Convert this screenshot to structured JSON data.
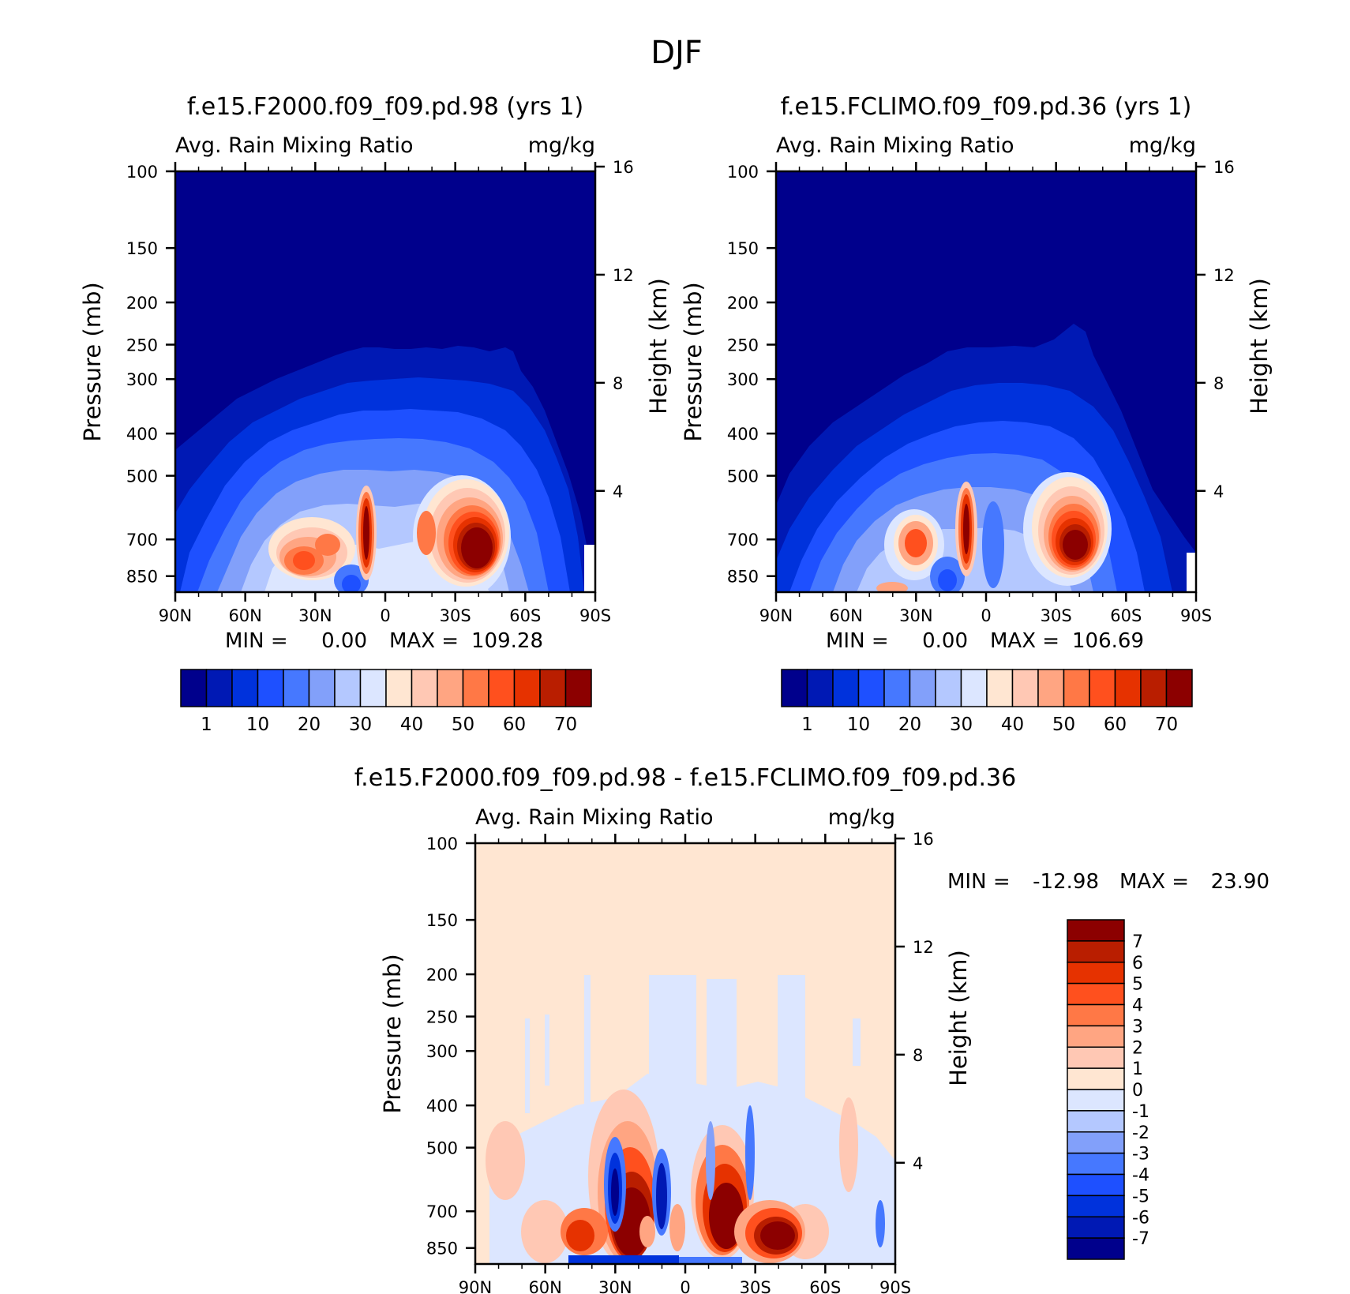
{
  "figure": {
    "title": "DJF"
  },
  "palettes": {
    "abs": [
      "#00008c",
      "#0019b4",
      "#0032dc",
      "#1e50ff",
      "#4678ff",
      "#82a0fa",
      "#b4c8ff",
      "#dce6ff",
      "#ffe6d2",
      "#ffc8b4",
      "#ffa582",
      "#ff7846",
      "#ff501e",
      "#e63200",
      "#b91e00",
      "#8c0000"
    ],
    "diff": [
      "#00008c",
      "#0019b4",
      "#0032dc",
      "#1e50ff",
      "#4678ff",
      "#82a0fa",
      "#b4c8ff",
      "#dce6ff",
      "#ffe6d2",
      "#ffc8b4",
      "#ffa582",
      "#ff7846",
      "#ff501e",
      "#e63200",
      "#b91e00",
      "#8c0000"
    ]
  },
  "chart_data": [
    {
      "type": "heatmap",
      "title": "f.e15.F2000.f09_f09.pd.98 (yrs 1)",
      "subtitle_left": "Avg. Rain Mixing Ratio",
      "subtitle_right": "mg/kg",
      "ylabel": "Pressure (mb)",
      "ylabel_right": "Height (km)",
      "x_ticks": [
        "90N",
        "60N",
        "30N",
        "0",
        "30S",
        "60S",
        "90S"
      ],
      "y_ticks": [
        "100",
        "150",
        "200",
        "250",
        "300",
        "400",
        "500",
        "700",
        "850"
      ],
      "y_values": [
        100,
        150,
        200,
        250,
        300,
        400,
        500,
        700,
        850
      ],
      "ylim": [
        100,
        925
      ],
      "y_right_ticks": [
        "16",
        "12",
        "8",
        "4"
      ],
      "y_right_values": [
        16,
        12,
        8,
        4
      ],
      "min_label": "MIN =",
      "min_value": "0.00",
      "max_label": "MAX =",
      "max_value": "109.28",
      "colorbar_levels": [
        "1",
        "10",
        "20",
        "30",
        "40",
        "50",
        "60",
        "70"
      ],
      "colorbar_thresholds": [
        0,
        1,
        5,
        10,
        15,
        20,
        25,
        30,
        35,
        40,
        45,
        50,
        55,
        60,
        65,
        70
      ],
      "background_level": 0,
      "field": [
        {
          "lat": 30,
          "p": 720,
          "value": 45
        },
        {
          "lat": 10,
          "p": 700,
          "value": 85
        },
        {
          "lat": -38,
          "p": 700,
          "value": 109.28
        },
        {
          "lat": -22,
          "p": 720,
          "value": 40
        }
      ]
    },
    {
      "type": "heatmap",
      "title": "f.e15.FCLIMO.f09_f09.pd.36 (yrs 1)",
      "subtitle_left": "Avg. Rain Mixing Ratio",
      "subtitle_right": "mg/kg",
      "ylabel": "Pressure (mb)",
      "ylabel_right": "Height (km)",
      "x_ticks": [
        "90N",
        "60N",
        "30N",
        "0",
        "30S",
        "60S",
        "90S"
      ],
      "y_ticks": [
        "100",
        "150",
        "200",
        "250",
        "300",
        "400",
        "500",
        "700",
        "850"
      ],
      "y_values": [
        100,
        150,
        200,
        250,
        300,
        400,
        500,
        700,
        850
      ],
      "ylim": [
        100,
        925
      ],
      "y_right_ticks": [
        "16",
        "12",
        "8",
        "4"
      ],
      "y_right_values": [
        16,
        12,
        8,
        4
      ],
      "min_label": "MIN =",
      "min_value": "0.00",
      "max_label": "MAX =",
      "max_value": "106.69",
      "colorbar_levels": [
        "1",
        "10",
        "20",
        "30",
        "40",
        "50",
        "60",
        "70"
      ],
      "colorbar_thresholds": [
        0,
        1,
        5,
        10,
        15,
        20,
        25,
        30,
        35,
        40,
        45,
        50,
        55,
        60,
        65,
        70
      ],
      "background_level": 0,
      "field": [
        {
          "lat": 30,
          "p": 700,
          "value": 40
        },
        {
          "lat": 9,
          "p": 680,
          "value": 80
        },
        {
          "lat": -37,
          "p": 700,
          "value": 106.69
        }
      ]
    },
    {
      "type": "heatmap",
      "title": "f.e15.F2000.f09_f09.pd.98 - f.e15.FCLIMO.f09_f09.pd.36",
      "subtitle_left": "Avg. Rain Mixing Ratio",
      "subtitle_right": "mg/kg",
      "ylabel": "Pressure (mb)",
      "ylabel_right": "Height (km)",
      "x_ticks": [
        "90N",
        "60N",
        "30N",
        "0",
        "30S",
        "60S",
        "90S"
      ],
      "y_ticks": [
        "100",
        "150",
        "200",
        "250",
        "300",
        "400",
        "500",
        "700",
        "850"
      ],
      "y_values": [
        100,
        150,
        200,
        250,
        300,
        400,
        500,
        700,
        850
      ],
      "ylim": [
        100,
        925
      ],
      "y_right_ticks": [
        "16",
        "12",
        "8",
        "4"
      ],
      "y_right_values": [
        16,
        12,
        8,
        4
      ],
      "min_label": "MIN =",
      "min_value": "-12.98",
      "max_label": "MAX =",
      "max_value": "23.90",
      "colorbar_levels": [
        "7",
        "6",
        "5",
        "4",
        "3",
        "2",
        "1",
        "0",
        "-1",
        "-2",
        "-3",
        "-4",
        "-5",
        "-6",
        "-7"
      ],
      "colorbar_thresholds": [
        7,
        6,
        5,
        4,
        3,
        2,
        1,
        0,
        -1,
        -2,
        -3,
        -4,
        -5,
        -6,
        -7
      ],
      "background_level": 0.5,
      "field": [
        {
          "lat": 25,
          "p": 700,
          "value": 23.9
        },
        {
          "lat": 30,
          "p": 600,
          "value": -12.98
        },
        {
          "lat": 10,
          "p": 620,
          "value": -10
        },
        {
          "lat": -15,
          "p": 700,
          "value": 15
        },
        {
          "lat": -35,
          "p": 760,
          "value": 12
        },
        {
          "lat": -45,
          "p": 780,
          "value": 8
        }
      ]
    }
  ]
}
